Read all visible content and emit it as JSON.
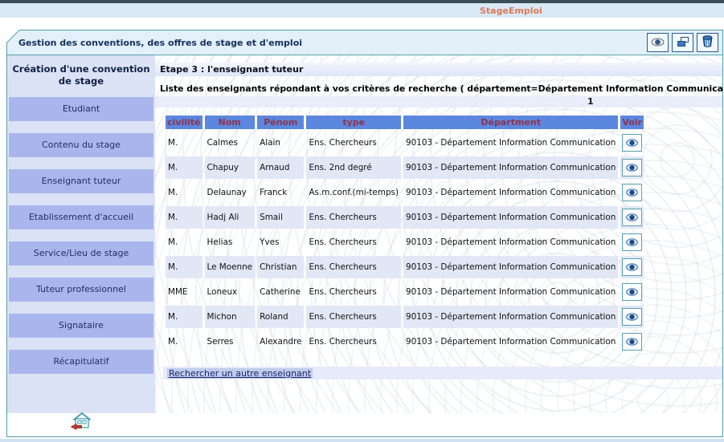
{
  "brand": {
    "title": "StageEmploi"
  },
  "window": {
    "title": "Gestion des conventions, des offres de stage et d'emploi",
    "toolbar": [
      {
        "icon": "eye-icon"
      },
      {
        "icon": "print-icon"
      },
      {
        "icon": "trash-icon"
      }
    ]
  },
  "sidebar": {
    "title": "Création d'une convention de stage",
    "items": [
      {
        "label": "Etudiant"
      },
      {
        "label": "Contenu du stage"
      },
      {
        "label": "Enseignant tuteur"
      },
      {
        "label": "Etablissement d'accueil"
      },
      {
        "label": "Service/Lieu de stage"
      },
      {
        "label": "Tuteur professionnel"
      },
      {
        "label": "Signataire"
      },
      {
        "label": "Récapitulatif"
      }
    ]
  },
  "main": {
    "step_title": "Etape 3 : l'enseignant tuteur",
    "results_title": "Liste des enseignants répondant à vos critères de recherche ( département=Département Information Communication )",
    "page_number": "1",
    "table": {
      "headers": [
        "civilité",
        "Nom",
        "Pénom",
        "type",
        "Départment",
        "Voir"
      ],
      "rows": [
        {
          "civilite": "M.",
          "nom": "Calmes",
          "prenom": "Alain",
          "type": "Ens. Chercheurs",
          "departement": "90103 - Département Information Communication"
        },
        {
          "civilite": "M.",
          "nom": "Chapuy",
          "prenom": "Arnaud",
          "type": "Ens. 2nd degré",
          "departement": "90103 - Département Information Communication"
        },
        {
          "civilite": "M.",
          "nom": "Delaunay",
          "prenom": "Franck",
          "type": "As.m.conf.(mi-temps)",
          "departement": "90103 - Département Information Communication"
        },
        {
          "civilite": "M.",
          "nom": "Hadj Ali",
          "prenom": "Smail",
          "type": "Ens. Chercheurs",
          "departement": "90103 - Département Information Communication"
        },
        {
          "civilite": "M.",
          "nom": "Helias",
          "prenom": "Yves",
          "type": "Ens. Chercheurs",
          "departement": "90103 - Département Information Communication"
        },
        {
          "civilite": "M.",
          "nom": "Le Moenne",
          "prenom": "Christian",
          "type": "Ens. Chercheurs",
          "departement": "90103 - Département Information Communication"
        },
        {
          "civilite": "MME",
          "nom": "Loneux",
          "prenom": "Catherine",
          "type": "Ens. Chercheurs",
          "departement": "90103 - Département Information Communication"
        },
        {
          "civilite": "M.",
          "nom": "Michon",
          "prenom": "Roland",
          "type": "Ens. Chercheurs",
          "departement": "90103 - Département Information Communication"
        },
        {
          "civilite": "M.",
          "nom": "Serres",
          "prenom": "Alexandre",
          "type": "Ens. Chercheurs",
          "departement": "90103 - Département Information Communication"
        }
      ]
    },
    "search_again_label": "Rechercher un autre enseignant"
  },
  "colors": {
    "brand_text": "#dd7a58",
    "frame_teal": "#4f9fa8",
    "header_blue": "#5c87de",
    "header_text": "#8e3350",
    "row_alt": "#e2e7f6",
    "sidebar_button": "#a9b6ed",
    "sidebar_bg": "#dbe2f5",
    "titlebar_bg": "#e3f0fa"
  }
}
